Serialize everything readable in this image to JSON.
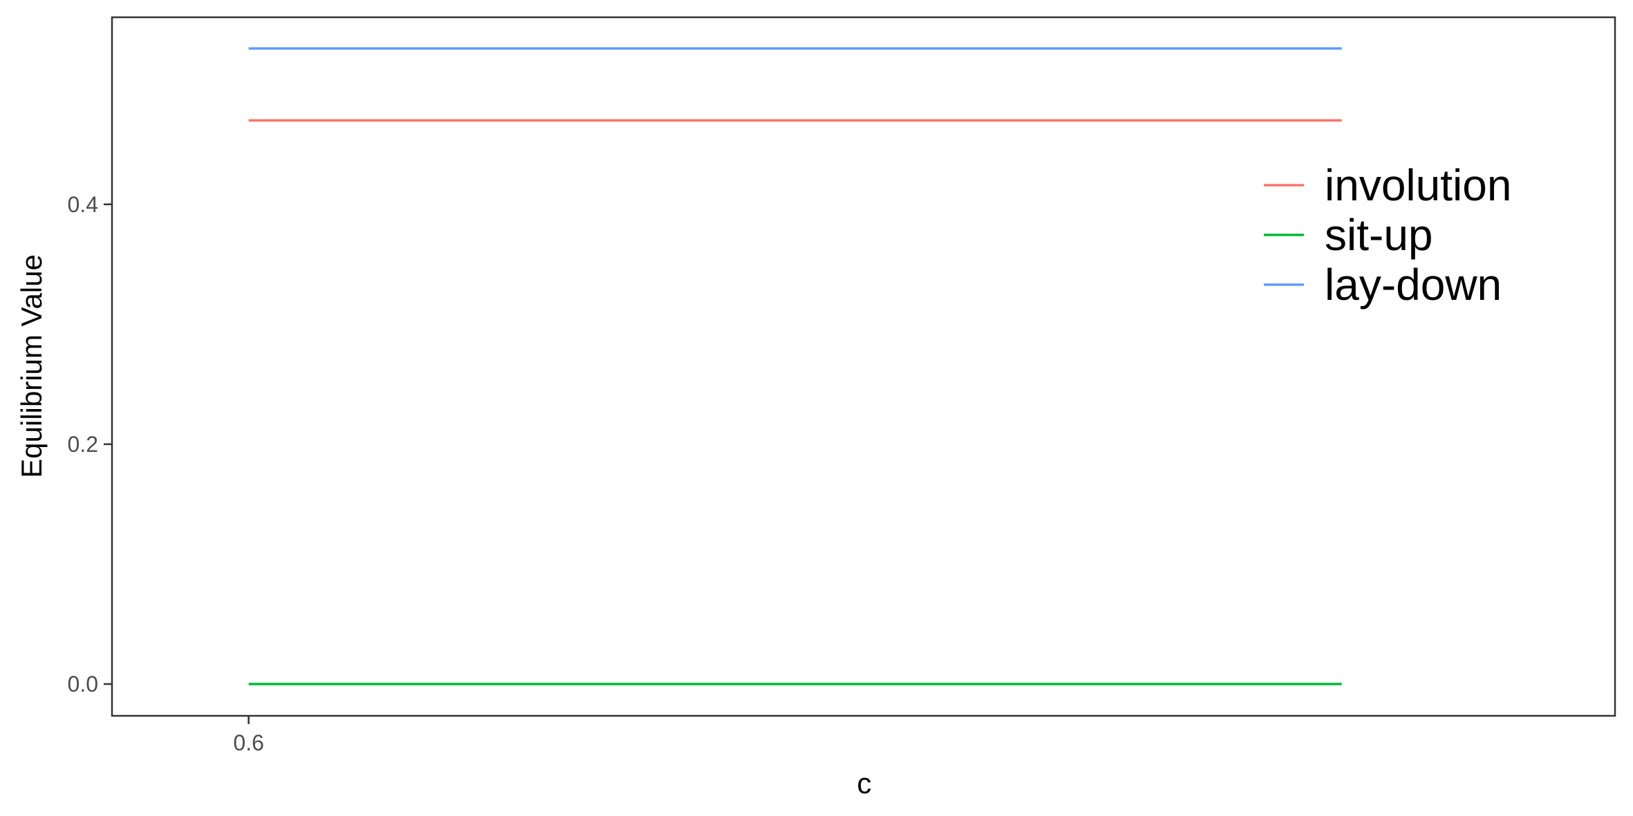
{
  "chart_data": {
    "type": "line",
    "title": "",
    "xlabel": "c",
    "ylabel": "Equilibrium Value",
    "x": [
      0.6,
      0.7,
      0.8,
      0.9,
      1.0
    ],
    "xlim": [
      0.55,
      1.1
    ],
    "ylim": [
      -0.0265,
      0.556
    ],
    "x_ticks": [
      0.6
    ],
    "x_tick_labels": [
      "0.6"
    ],
    "y_ticks": [
      0.0,
      0.2,
      0.4
    ],
    "y_tick_labels": [
      "0.0",
      "0.2",
      "0.4"
    ],
    "grid": false,
    "legend_position": "top-right",
    "series": [
      {
        "name": "involution",
        "color": "#F8766D",
        "values": [
          0.47,
          0.47,
          0.47,
          0.47,
          0.47
        ]
      },
      {
        "name": "sit-up",
        "color": "#00BA38",
        "values": [
          0.0,
          0.0,
          0.0,
          0.0,
          0.0
        ]
      },
      {
        "name": "lay-down",
        "color": "#619CFF",
        "values": [
          0.53,
          0.53,
          0.53,
          0.53,
          0.53
        ]
      }
    ]
  }
}
